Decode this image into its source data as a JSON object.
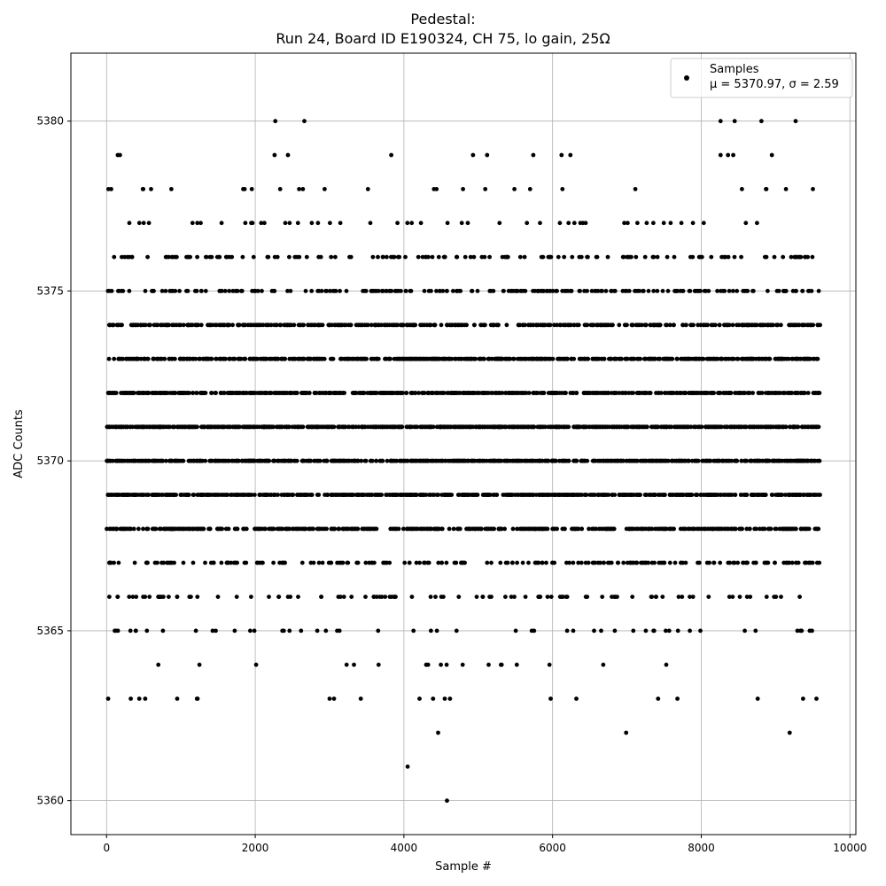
{
  "chart_data": {
    "type": "scatter",
    "title": "Pedestal:",
    "subtitle": "Run 24, Board ID E190324, CH 75, lo gain, 25Ω",
    "xlabel": "Sample #",
    "ylabel": "ADC Counts",
    "xlim": [
      -480,
      10080
    ],
    "ylim": [
      5359.0,
      5382.0
    ],
    "x_ticks": [
      0,
      2000,
      4000,
      6000,
      8000,
      10000
    ],
    "y_ticks": [
      5360,
      5365,
      5370,
      5375,
      5380
    ],
    "grid": true,
    "legend_position": "top-right",
    "series": [
      {
        "name": "Samples",
        "color": "#000000",
        "marker": "circle",
        "stats_label": "μ = 5370.97, σ = 2.59",
        "n_samples": 9600,
        "dense_level_distribution": {
          "5363": 0.002,
          "5364": 0.004,
          "5365": 0.01,
          "5366": 0.02,
          "5367": 0.045,
          "5368": 0.085,
          "5369": 0.12,
          "5370": 0.15,
          "5371": 0.15,
          "5372": 0.13,
          "5373": 0.11,
          "5374": 0.085,
          "5375": 0.05,
          "5376": 0.025,
          "5377": 0.01,
          "5378": 0.004
        },
        "notable_points": [
          {
            "x": 4050,
            "y": 5361
          },
          {
            "x": 4580,
            "y": 5360
          },
          {
            "x": 4460,
            "y": 5362
          },
          {
            "x": 6990,
            "y": 5362
          },
          {
            "x": 9190,
            "y": 5362
          },
          {
            "x": 520,
            "y": 5363
          },
          {
            "x": 950,
            "y": 5363
          },
          {
            "x": 3000,
            "y": 5363
          },
          {
            "x": 3060,
            "y": 5363
          },
          {
            "x": 3420,
            "y": 5363
          },
          {
            "x": 4210,
            "y": 5363
          },
          {
            "x": 4550,
            "y": 5363
          },
          {
            "x": 4620,
            "y": 5363
          },
          {
            "x": 6320,
            "y": 5363
          },
          {
            "x": 7420,
            "y": 5363
          },
          {
            "x": 9370,
            "y": 5363
          },
          {
            "x": 9550,
            "y": 5363
          },
          {
            "x": 2270,
            "y": 5380
          },
          {
            "x": 2660,
            "y": 5380
          },
          {
            "x": 8260,
            "y": 5380
          },
          {
            "x": 8450,
            "y": 5380
          },
          {
            "x": 8810,
            "y": 5380
          },
          {
            "x": 9270,
            "y": 5380
          },
          {
            "x": 150,
            "y": 5379
          },
          {
            "x": 180,
            "y": 5379
          },
          {
            "x": 2260,
            "y": 5379
          },
          {
            "x": 2440,
            "y": 5379
          },
          {
            "x": 3830,
            "y": 5379
          },
          {
            "x": 4930,
            "y": 5379
          },
          {
            "x": 5120,
            "y": 5379
          },
          {
            "x": 5740,
            "y": 5379
          },
          {
            "x": 6120,
            "y": 5379
          },
          {
            "x": 6240,
            "y": 5379
          },
          {
            "x": 8260,
            "y": 5379
          },
          {
            "x": 8360,
            "y": 5379
          },
          {
            "x": 8430,
            "y": 5379
          },
          {
            "x": 8950,
            "y": 5379
          }
        ]
      }
    ]
  }
}
